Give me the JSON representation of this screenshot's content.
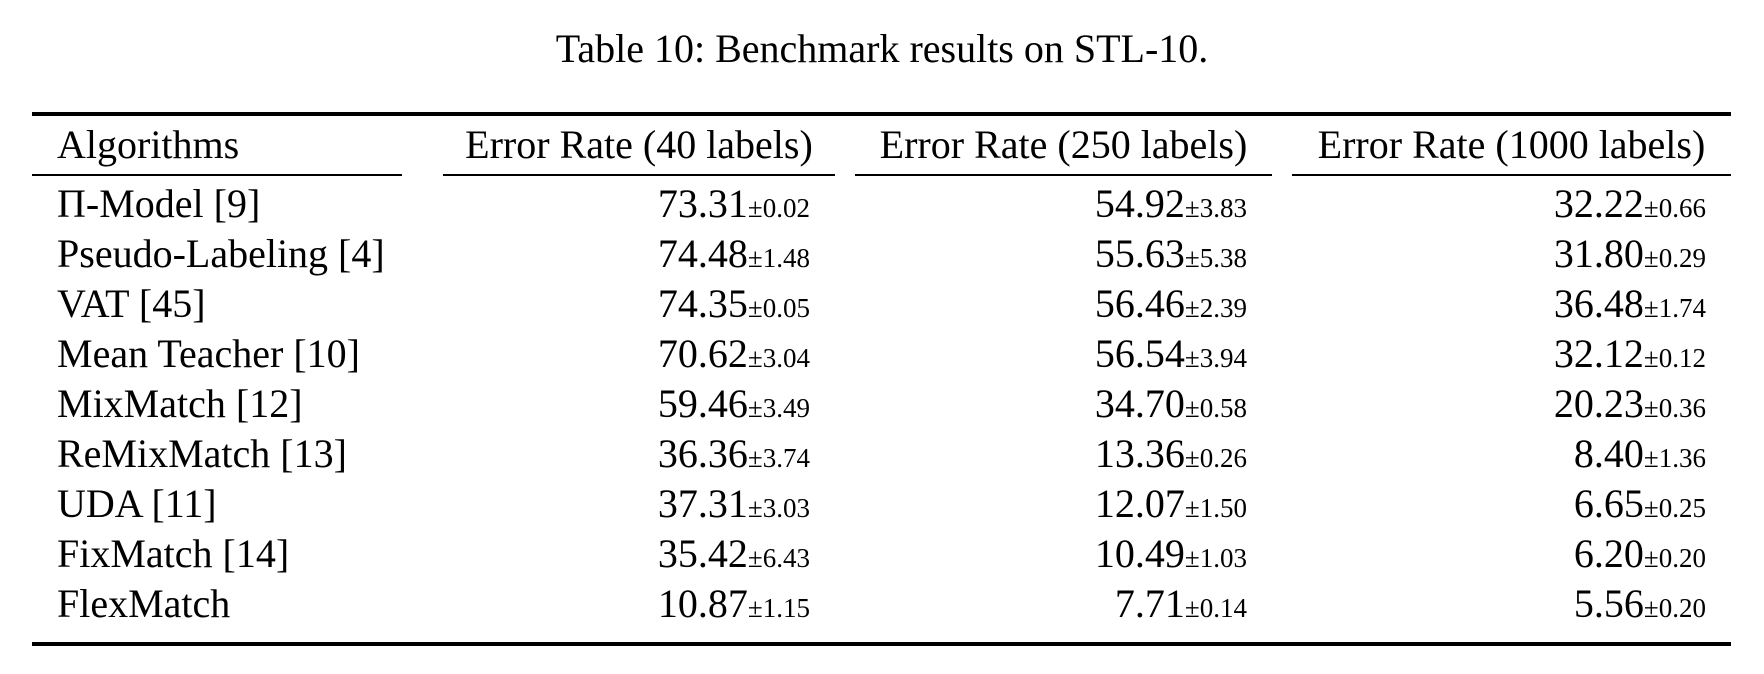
{
  "caption": "Table 10: Benchmark results on STL-10.",
  "table": {
    "pm_sign": "±",
    "columns": [
      "Algorithms",
      "Error Rate (40 labels)",
      "Error Rate (250 labels)",
      "Error Rate (1000 labels)"
    ],
    "rows": [
      {
        "algorithm": "Π-Model [9]",
        "values": [
          {
            "mean": "73.31",
            "std": "0.02"
          },
          {
            "mean": "54.92",
            "std": "3.83"
          },
          {
            "mean": "32.22",
            "std": "0.66"
          }
        ]
      },
      {
        "algorithm": "Pseudo-Labeling [4]",
        "values": [
          {
            "mean": "74.48",
            "std": "1.48"
          },
          {
            "mean": "55.63",
            "std": "5.38"
          },
          {
            "mean": "31.80",
            "std": "0.29"
          }
        ]
      },
      {
        "algorithm": "VAT [45]",
        "values": [
          {
            "mean": "74.35",
            "std": "0.05"
          },
          {
            "mean": "56.46",
            "std": "2.39"
          },
          {
            "mean": "36.48",
            "std": "1.74"
          }
        ]
      },
      {
        "algorithm": "Mean Teacher [10]",
        "values": [
          {
            "mean": "70.62",
            "std": "3.04"
          },
          {
            "mean": "56.54",
            "std": "3.94"
          },
          {
            "mean": "32.12",
            "std": "0.12"
          }
        ]
      },
      {
        "algorithm": "MixMatch [12]",
        "values": [
          {
            "mean": "59.46",
            "std": "3.49"
          },
          {
            "mean": "34.70",
            "std": "0.58"
          },
          {
            "mean": "20.23",
            "std": "0.36"
          }
        ]
      },
      {
        "algorithm": "ReMixMatch [13]",
        "values": [
          {
            "mean": "36.36",
            "std": "3.74"
          },
          {
            "mean": "13.36",
            "std": "0.26"
          },
          {
            "mean": "8.40",
            "std": "1.36"
          }
        ]
      },
      {
        "algorithm": "UDA [11]",
        "values": [
          {
            "mean": "37.31",
            "std": "3.03"
          },
          {
            "mean": "12.07",
            "std": "1.50"
          },
          {
            "mean": "6.65",
            "std": "0.25"
          }
        ]
      },
      {
        "algorithm": "FixMatch [14]",
        "values": [
          {
            "mean": "35.42",
            "std": "6.43"
          },
          {
            "mean": "10.49",
            "std": "1.03"
          },
          {
            "mean": "6.20",
            "std": "0.20"
          }
        ]
      },
      {
        "algorithm": "FlexMatch",
        "values": [
          {
            "mean": "10.87",
            "std": "1.15"
          },
          {
            "mean": "7.71",
            "std": "0.14"
          },
          {
            "mean": "5.56",
            "std": "0.20"
          }
        ]
      }
    ]
  }
}
